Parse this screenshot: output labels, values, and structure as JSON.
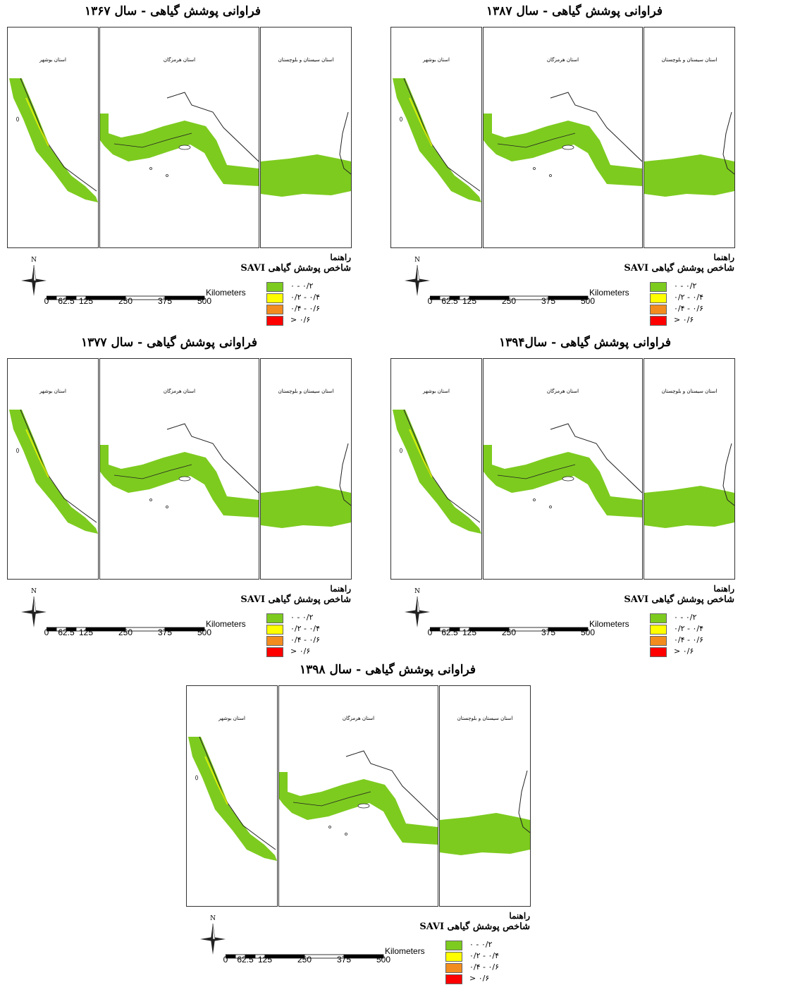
{
  "legend": {
    "title": "راهنما",
    "index_label": "شاخص پوشش گیاهی SAVI",
    "classes": [
      {
        "label": "۰ - ۰/۲",
        "color": "#7DCB1F"
      },
      {
        "label": "۰/۲ - ۰/۴",
        "color": "#FFFF00"
      },
      {
        "label": "۰/۴ - ۰/۶",
        "color": "#F28C1E"
      },
      {
        "label": "> ۰/۶",
        "color": "#FF0000"
      }
    ]
  },
  "scale_bar": {
    "ticks": [
      "0",
      "62.5",
      "125",
      "250",
      "375",
      "500"
    ],
    "unit": "Kilometers"
  },
  "north_arrow": {
    "letter": "N",
    "icon": "north-arrow-icon"
  },
  "provinces": {
    "bushehr": "استان بوشهر",
    "hormozgan": "استان هرمزگان",
    "sistan": "استان سیستان و بلوچستان"
  },
  "maps": [
    {
      "title": "فراوانی پوشش گیاهی - سال ۱۳۶۷"
    },
    {
      "title": "فراوانی پوشش گیاهی - سال ۱۳۸۷"
    },
    {
      "title": "فراوانی پوشش گیاهی - سال ۱۳۷۷"
    },
    {
      "title": "فراوانی پوشش گیاهی - سال۱۳۹۴"
    },
    {
      "title": "فراوانی پوشش گیاهی - سال ۱۳۹۸"
    }
  ]
}
